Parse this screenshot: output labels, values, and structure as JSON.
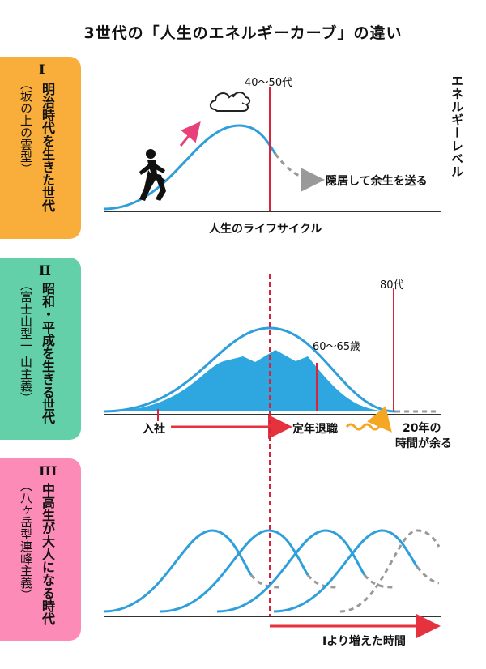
{
  "title": "3世代の「人生のエネルギーカーブ」の違い",
  "sections": [
    {
      "num": "I",
      "main": "明治時代を生きた世代",
      "sub": "（坂の上の雲型）",
      "color": "#F9AE3B"
    },
    {
      "num": "II",
      "main": "昭和・平成を生きる世代",
      "sub": "（富士山型一 山主義）",
      "color": "#63D0A9"
    },
    {
      "num": "III",
      "main": "中高生が大人になる時代",
      "sub": "（八ヶ岳型連峰主義）",
      "color": "#FD8BB8"
    }
  ],
  "panel1": {
    "peak_label": "40〜50代",
    "retire_label": "隠居して余生を送る",
    "y_label": "エネルギーレベル",
    "x_label": "人生のライフサイクル",
    "icons": [
      "walking-person-icon",
      "up-arrow-icon",
      "cloud-icon"
    ]
  },
  "panel2": {
    "label_80": "80代",
    "label_6065": "60〜65歳",
    "join": "入社",
    "retire": "定年退職",
    "extra_line1": "20年の",
    "extra_line2": "時間が余る"
  },
  "panel3": {
    "bottom_label": "Ⅰより増えた時間"
  },
  "colors": {
    "curve": "#2E9FDB",
    "fill": "#2EA7E0",
    "red": "#D6253A",
    "arrow": "#E6323E",
    "gray": "#999999",
    "wave": "#F5A623",
    "pink": "#E8407A"
  }
}
